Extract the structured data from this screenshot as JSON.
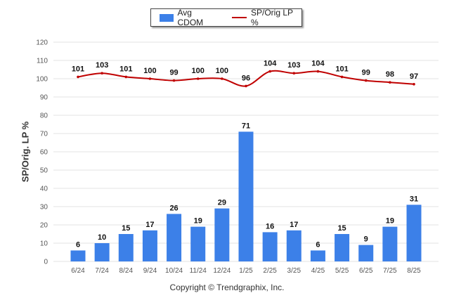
{
  "chart_data": {
    "type": "bar",
    "categories": [
      "6/24",
      "7/24",
      "8/24",
      "9/24",
      "10/24",
      "11/24",
      "12/24",
      "1/25",
      "2/25",
      "3/25",
      "4/25",
      "5/25",
      "6/25",
      "7/25",
      "8/25"
    ],
    "series": [
      {
        "name": "Avg CDOM",
        "type": "bar",
        "values": [
          6,
          10,
          15,
          17,
          26,
          19,
          29,
          71,
          16,
          17,
          6,
          15,
          9,
          19,
          31
        ],
        "color": "#3c80e8"
      },
      {
        "name": "SP/Orig LP %",
        "type": "line",
        "values": [
          101,
          103,
          101,
          100,
          99,
          100,
          100,
          96,
          104,
          103,
          104,
          101,
          99,
          98,
          97
        ],
        "color": "#c00000"
      }
    ],
    "ylabel": "SP/Orig. LP %",
    "xlabel": "",
    "ylim": [
      0,
      120
    ],
    "yticks": [
      0,
      10,
      20,
      30,
      40,
      50,
      60,
      70,
      80,
      90,
      100,
      110,
      120
    ],
    "grid": true,
    "legend_position": "top-center"
  },
  "legend": {
    "bar_label": "Avg CDOM",
    "line_label": "SP/Orig LP %"
  },
  "footer": {
    "copyright": "Copyright © Trendgraphix, Inc."
  }
}
